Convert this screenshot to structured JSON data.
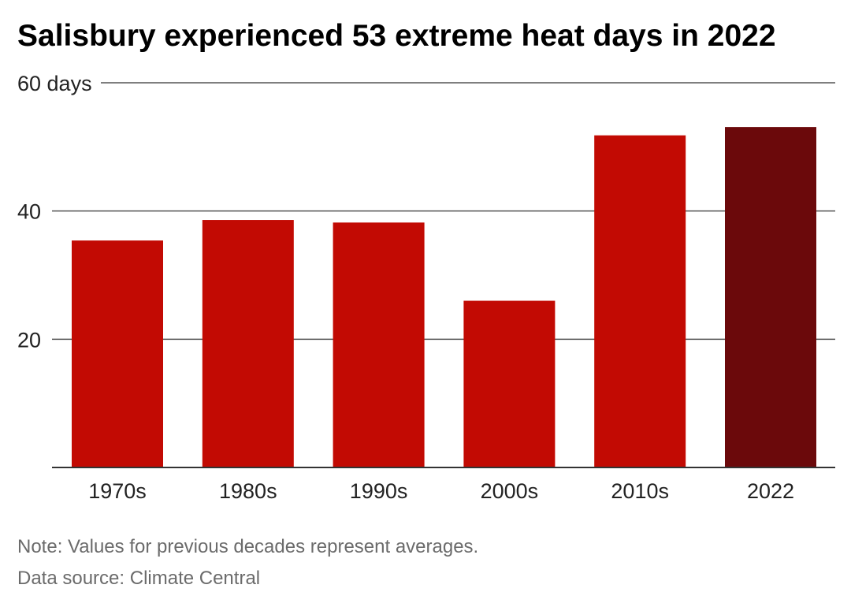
{
  "chart_data": {
    "type": "bar",
    "title": "Salisbury experienced 53 extreme heat days in 2022",
    "categories": [
      "1970s",
      "1980s",
      "1990s",
      "2000s",
      "2010s",
      "2022"
    ],
    "values": [
      35.4,
      38.6,
      38.2,
      26,
      51.8,
      53.1
    ],
    "ylim": [
      0,
      60
    ],
    "yticks": [
      {
        "value": 20,
        "label": "20"
      },
      {
        "value": 40,
        "label": "40"
      },
      {
        "value": 60,
        "label": "60 days"
      }
    ],
    "grid": true,
    "colors": {
      "bar": "#c20a03",
      "highlight": "#6b090b",
      "grid": "#555555"
    },
    "highlight_category": "2022"
  },
  "footer": {
    "note": "Note: Values for previous decades represent averages.",
    "source": "Data source: Climate Central"
  }
}
